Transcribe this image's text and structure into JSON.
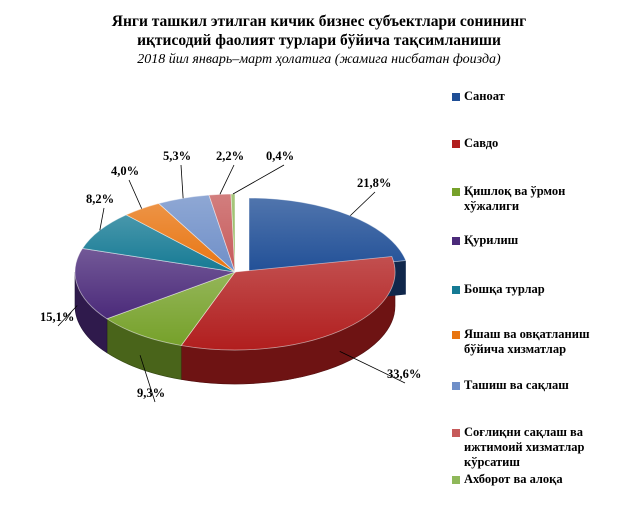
{
  "chart_data": {
    "type": "pie",
    "title_lines": [
      "Янги ташкил этилган кичик бизнес субъектлари сонининг",
      "иқтисодий фаолият турлари бўйича тақсимланиши"
    ],
    "subtitle": "2018 йил январь–март ҳолатига (жамига нисбатан фоизда)",
    "legend_position": "right",
    "slices": [
      {
        "name": "Саноат",
        "value": 21.8,
        "label": "21,8%",
        "color": "#1f4e96"
      },
      {
        "name": "Савдо",
        "value": 33.6,
        "label": "33,6%",
        "color": "#b11e1e"
      },
      {
        "name": "Қишлоқ ва ўрмон хўжалиги",
        "value": 9.3,
        "label": "9,3%",
        "color": "#76a12a"
      },
      {
        "name": "Қурилиш",
        "value": 15.1,
        "label": "15,1%",
        "color": "#4b2a7a"
      },
      {
        "name": "Бошқа турлар",
        "value": 8.2,
        "label": "8,2%",
        "color": "#157a94"
      },
      {
        "name": "Яшаш ва овқатланиш бўйича хизматлар",
        "value": 4.0,
        "label": "4,0%",
        "color": "#e87511"
      },
      {
        "name": "Ташиш ва сақлаш",
        "value": 5.3,
        "label": "5,3%",
        "color": "#6f8fc8"
      },
      {
        "name": "Соғлиқни сақлаш ва ижтимоий хизматлар кўрсатиш",
        "value": 2.2,
        "label": "2,2%",
        "color": "#c65a5a"
      },
      {
        "name": "Ахборот ва алоқа",
        "value": 0.4,
        "label": "0,4%",
        "color": "#8fb85a"
      }
    ]
  },
  "legend": {
    "items": [
      {
        "lines": [
          "Саноат"
        ]
      },
      {
        "lines": [
          "Савдо"
        ]
      },
      {
        "lines": [
          "Қишлоқ ва ўрмон",
          "хўжалиги"
        ]
      },
      {
        "lines": [
          "Қурилиш"
        ]
      },
      {
        "lines": [
          "Бошқа турлар"
        ]
      },
      {
        "lines": [
          "Яшаш ва овқатланиш",
          "бўйича хизматлар"
        ]
      },
      {
        "lines": [
          "Ташиш ва сақлаш"
        ]
      },
      {
        "lines": [
          "Соғлиқни сақлаш ва",
          "ижтимоий хизматлар",
          "кўрсатиш"
        ]
      },
      {
        "lines": [
          "Ахборот ва алоқа"
        ]
      }
    ]
  }
}
